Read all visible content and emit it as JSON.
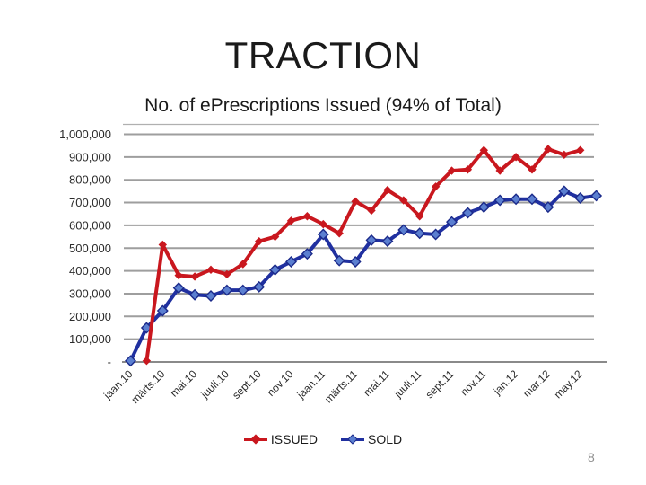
{
  "slide": {
    "title": "TRACTION",
    "page_number": "8"
  },
  "chart_data": {
    "type": "line",
    "title": "No. of ePrescriptions Issued (94% of Total)",
    "n_points": 30,
    "x_tick_every": 2,
    "x_tick_labels": [
      "jaan.10",
      "märts.10",
      "mai.10",
      "juuli.10",
      "sept.10",
      "nov.10",
      "jaan.11",
      "märts.11",
      "mai.11",
      "juuli.11",
      "sept.11",
      "nov.11",
      "jan.12",
      "mar.12",
      "may.12"
    ],
    "ylim": [
      0,
      1000000
    ],
    "y_step": 100000,
    "y_tick_labels": [
      "-",
      "100,000",
      "200,000",
      "300,000",
      "400,000",
      "500,000",
      "600,000",
      "700,000",
      "800,000",
      "900,000",
      "1,000,000"
    ],
    "grid": true,
    "legend_position": "bottom",
    "colors": {
      "gridline": "#9e9e9e",
      "axis": "#8a8a8a",
      "plot_border": "#b0b0b0"
    },
    "series": [
      {
        "name": "ISSUED",
        "line_color": "#c9171e",
        "marker_color": "#c9171e",
        "values": [
          null,
          5000,
          515000,
          380000,
          375000,
          405000,
          385000,
          430000,
          530000,
          550000,
          620000,
          640000,
          605000,
          565000,
          705000,
          665000,
          755000,
          710000,
          640000,
          770000,
          840000,
          845000,
          930000,
          840000,
          900000,
          845000,
          935000,
          910000,
          930000,
          null
        ]
      },
      {
        "name": "SOLD",
        "line_color": "#2030a0",
        "marker_color": "#5b7fd0",
        "marker_edge": "#1b2a8a",
        "values": [
          5000,
          150000,
          225000,
          325000,
          295000,
          290000,
          315000,
          315000,
          330000,
          405000,
          440000,
          475000,
          560000,
          445000,
          440000,
          535000,
          530000,
          580000,
          565000,
          560000,
          615000,
          655000,
          680000,
          710000,
          715000,
          715000,
          680000,
          750000,
          720000,
          730000
        ]
      }
    ]
  }
}
